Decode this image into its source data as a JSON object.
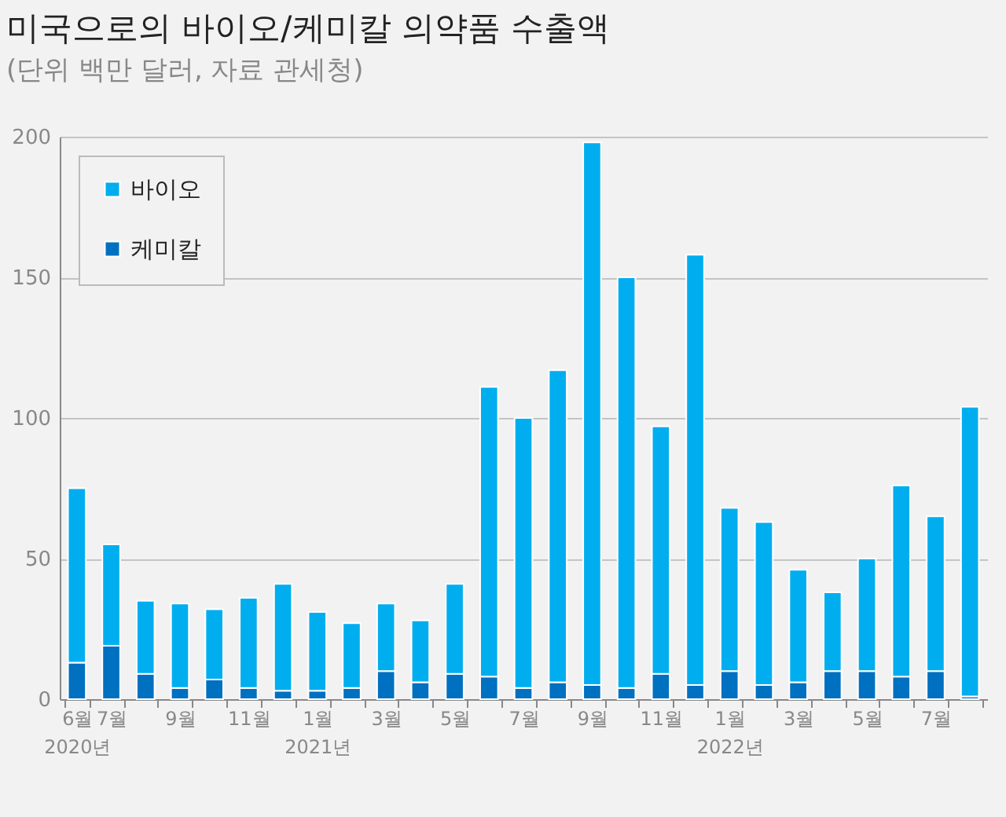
{
  "chart_data": {
    "type": "bar",
    "title": "미국으로의 바이오/케미칼 의약품 수출액",
    "subtitle": "(단위 백만 달러, 자료 관세청)",
    "categories": [
      "6월 2020년",
      "7월",
      null,
      "9월",
      null,
      "11월",
      null,
      "1월 2021년",
      null,
      "3월",
      null,
      "5월",
      null,
      "7월",
      null,
      "9월",
      null,
      "11월",
      null,
      "1월 2022년",
      null,
      "3월",
      null,
      "5월",
      null,
      "7월",
      null
    ],
    "stacked": true,
    "series": [
      {
        "name": "케미칼",
        "color": "#0070c0",
        "values": [
          13,
          19,
          9,
          4,
          7,
          4,
          3,
          3,
          4,
          10,
          6,
          9,
          8,
          4,
          6,
          5,
          4,
          9,
          5,
          10,
          5,
          6,
          10,
          10,
          8,
          10,
          1
        ]
      },
      {
        "name": "바이오",
        "color": "#00aeef",
        "values": [
          62,
          36,
          26,
          30,
          25,
          32,
          38,
          28,
          23,
          24,
          22,
          32,
          103,
          96,
          111,
          193,
          146,
          88,
          153,
          58,
          58,
          40,
          28,
          40,
          68,
          55,
          103
        ]
      }
    ],
    "ylim": [
      0,
      200
    ],
    "yticks": [
      0,
      50,
      100,
      150,
      200
    ],
    "grid": "y",
    "legend": "top left"
  }
}
